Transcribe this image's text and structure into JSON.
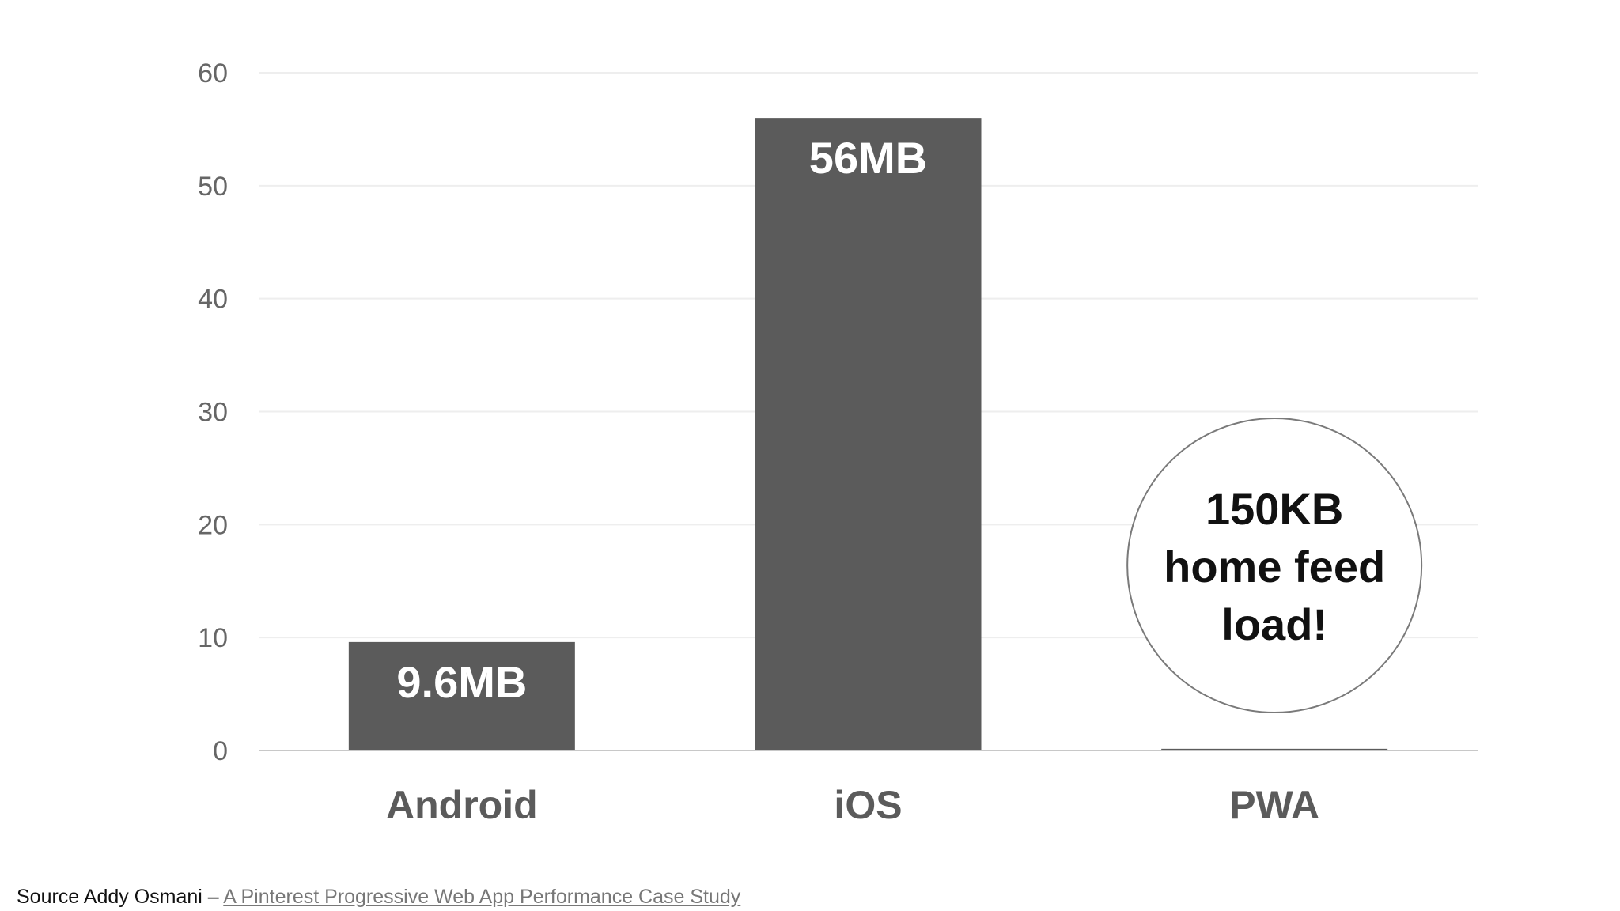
{
  "chart_data": {
    "type": "bar",
    "categories": [
      "Android",
      "iOS",
      "PWA"
    ],
    "values": [
      9.6,
      56,
      0.15
    ],
    "units": "MB",
    "data_labels": [
      "9.6MB",
      "56MB",
      ""
    ],
    "ylim": [
      0,
      60
    ],
    "yticks": [
      0,
      10,
      20,
      30,
      40,
      50,
      60
    ],
    "ytick_labels": [
      "0",
      "10",
      "20",
      "30",
      "40",
      "50",
      "60"
    ],
    "grid": true,
    "title": "",
    "xlabel": "",
    "ylabel": "",
    "bar_color": "#5b5b5b",
    "annotation": {
      "target": "PWA",
      "lines": [
        "150KB",
        "home feed",
        "load!"
      ]
    }
  },
  "source": {
    "prefix": "Source Addy Osmani – ",
    "link_text": "A Pinterest Progressive Web App Performance Case Study"
  }
}
